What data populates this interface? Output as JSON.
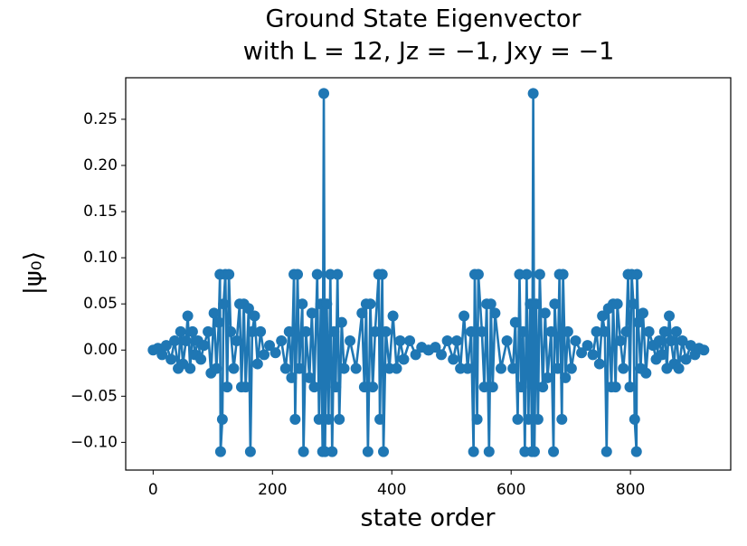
{
  "chart_data": {
    "type": "line",
    "title": "Ground State Eigenvector",
    "subtitle": "with L = 12,  Jz = −1,  Jxy = −1",
    "x_label": "state order",
    "y_label": "|ψ₀⟩",
    "color": "#1f77b4",
    "marker": "circle",
    "xlim": [
      -46,
      968
    ],
    "ylim": [
      -0.13,
      0.295
    ],
    "xticks": [
      0,
      200,
      400,
      600,
      800
    ],
    "yticks": [
      {
        "value": -0.1,
        "label": "−0.10"
      },
      {
        "value": -0.05,
        "label": "−0.05"
      },
      {
        "value": 0,
        "label": "0.00"
      },
      {
        "value": 0.05,
        "label": "0.05"
      },
      {
        "value": 0.1,
        "label": "0.10"
      },
      {
        "value": 0.15,
        "label": "0.15"
      },
      {
        "value": 0.2,
        "label": "0.20"
      },
      {
        "value": 0.25,
        "label": "0.25"
      }
    ],
    "grid": false,
    "x": [
      0,
      8,
      15,
      22,
      30,
      36,
      42,
      46,
      50,
      55,
      58,
      62,
      66,
      70,
      75,
      80,
      85,
      92,
      97,
      102,
      106,
      110,
      112,
      113,
      116,
      118,
      121,
      124,
      127,
      130,
      135,
      140,
      145,
      148,
      152,
      155,
      160,
      163,
      166,
      170,
      175,
      180,
      186,
      195,
      205,
      215,
      222,
      228,
      232,
      236,
      238,
      242,
      245,
      250,
      252,
      256,
      262,
      266,
      270,
      275,
      278,
      281,
      284,
      286,
      288,
      291,
      294,
      297,
      300,
      303,
      306,
      309,
      312,
      316,
      320,
      330,
      340,
      350,
      354,
      357,
      360,
      364,
      368,
      372,
      378,
      380,
      384,
      386,
      390,
      396,
      402,
      408,
      414,
      420,
      430,
      440,
      450,
      461,
      462,
      473,
      483,
      493,
      503,
      509,
      515,
      521,
      527,
      533,
      537,
      539,
      543,
      545,
      551,
      555,
      559,
      563,
      566,
      569,
      573,
      583,
      593,
      603,
      607,
      611,
      614,
      617,
      620,
      623,
      626,
      629,
      632,
      635,
      637,
      639,
      642,
      645,
      648,
      653,
      657,
      661,
      667,
      671,
      673,
      678,
      681,
      685,
      687,
      691,
      695,
      701,
      708,
      718,
      728,
      737,
      743,
      748,
      753,
      757,
      760,
      763,
      768,
      771,
      775,
      778,
      783,
      788,
      793,
      796,
      799,
      802,
      805,
      807,
      810,
      811,
      813,
      817,
      821,
      826,
      831,
      838,
      843,
      848,
      853,
      857,
      861,
      865,
      868,
      873,
      877,
      881,
      887,
      893,
      901,
      908,
      915,
      923
    ],
    "values": [
      0,
      0.002,
      -0.005,
      0.005,
      -0.01,
      0.01,
      -0.02,
      0.02,
      -0.015,
      0.01,
      0.037,
      -0.02,
      0.02,
      -0.005,
      0.01,
      -0.01,
      0.005,
      0.02,
      -0.025,
      0.04,
      -0.02,
      0.03,
      0.082,
      -0.11,
      -0.075,
      0.05,
      0.082,
      -0.04,
      0.082,
      0.02,
      -0.02,
      0.01,
      0.05,
      -0.04,
      0.05,
      -0.04,
      0.045,
      -0.11,
      0.02,
      0.037,
      -0.015,
      0.02,
      -0.005,
      0.005,
      -0.003,
      0.01,
      -0.02,
      0.02,
      -0.03,
      0.082,
      -0.075,
      0.082,
      -0.02,
      0.05,
      -0.11,
      0.02,
      -0.03,
      0.04,
      -0.04,
      0.082,
      -0.075,
      0.05,
      -0.11,
      0.278,
      -0.11,
      0.05,
      -0.075,
      0.082,
      -0.11,
      0.02,
      -0.04,
      0.082,
      -0.075,
      0.03,
      -0.02,
      0.01,
      -0.02,
      0.04,
      -0.04,
      0.05,
      -0.11,
      0.05,
      -0.04,
      0.02,
      0.082,
      -0.075,
      0.082,
      -0.11,
      0.02,
      -0.02,
      0.037,
      -0.02,
      0.01,
      -0.01,
      0.01,
      -0.005,
      0.003,
      0,
      0,
      0.003,
      -0.005,
      0.01,
      -0.01,
      0.01,
      -0.02,
      0.037,
      -0.02,
      0.02,
      -0.11,
      0.082,
      -0.075,
      0.082,
      0.02,
      -0.04,
      0.05,
      -0.11,
      0.05,
      -0.04,
      0.04,
      -0.02,
      0.01,
      -0.02,
      0.03,
      -0.075,
      0.082,
      -0.04,
      0.02,
      -0.11,
      0.082,
      -0.075,
      0.05,
      -0.11,
      0.278,
      -0.11,
      0.05,
      -0.075,
      0.082,
      -0.04,
      0.04,
      -0.03,
      0.02,
      -0.11,
      0.05,
      -0.02,
      0.082,
      -0.075,
      0.082,
      -0.03,
      0.02,
      -0.02,
      0.01,
      -0.003,
      0.005,
      -0.005,
      0.02,
      -0.015,
      0.037,
      0.02,
      -0.11,
      0.045,
      -0.04,
      0.05,
      -0.04,
      0.05,
      0.01,
      -0.02,
      0.02,
      0.082,
      -0.04,
      0.082,
      0.05,
      -0.075,
      -0.11,
      0.082,
      0.03,
      -0.02,
      0.04,
      -0.025,
      0.02,
      0.005,
      -0.01,
      0.01,
      -0.005,
      0.02,
      -0.02,
      0.037,
      0.01,
      -0.015,
      0.02,
      -0.02,
      0.01,
      -0.01,
      0.005,
      -0.005,
      0.002,
      0
    ]
  }
}
